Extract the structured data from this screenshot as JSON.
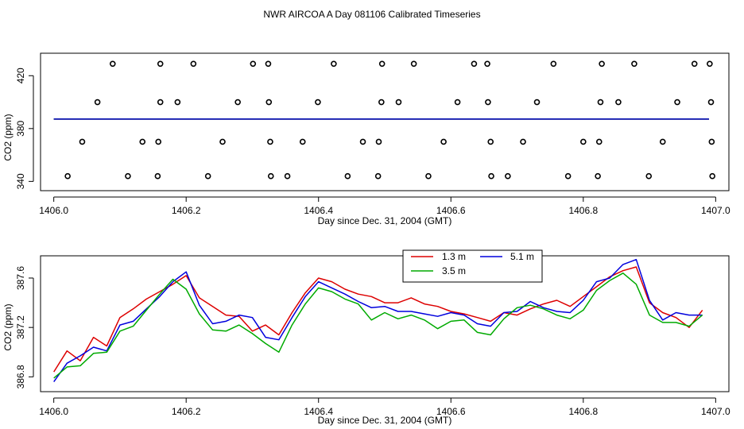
{
  "figure_title": "NWR AIRCOA A  Day 081106  Calibrated Timeseries",
  "chart_data": [
    {
      "type": "scatter",
      "xlabel": "Day since Dec. 31, 2004 (GMT)",
      "ylabel": "CO2 (ppm)",
      "xlim": [
        1405.98,
        1407.02
      ],
      "ylim": [
        333,
        437
      ],
      "x_ticks": [
        "1406.0",
        "1406.2",
        "1406.4",
        "1406.6",
        "1406.8",
        "1407.0"
      ],
      "x_tick_values": [
        1406.0,
        1406.2,
        1406.4,
        1406.6,
        1406.8,
        1407.0
      ],
      "y_ticks": [
        "340",
        "380",
        "420"
      ],
      "y_tick_values": [
        340,
        380,
        420
      ],
      "flat_line": {
        "y": 387.2,
        "colors": [
          "#cc0000",
          "#00aa00",
          "#0000cc"
        ]
      },
      "points": [
        {
          "x": 1406.089,
          "y": 429
        },
        {
          "x": 1406.161,
          "y": 429
        },
        {
          "x": 1406.211,
          "y": 429
        },
        {
          "x": 1406.301,
          "y": 429
        },
        {
          "x": 1406.324,
          "y": 429
        },
        {
          "x": 1406.423,
          "y": 429
        },
        {
          "x": 1406.496,
          "y": 429
        },
        {
          "x": 1406.544,
          "y": 429
        },
        {
          "x": 1406.635,
          "y": 429
        },
        {
          "x": 1406.655,
          "y": 429
        },
        {
          "x": 1406.755,
          "y": 429
        },
        {
          "x": 1406.828,
          "y": 429
        },
        {
          "x": 1406.877,
          "y": 429
        },
        {
          "x": 1406.968,
          "y": 429
        },
        {
          "x": 1406.991,
          "y": 429
        },
        {
          "x": 1406.066,
          "y": 400
        },
        {
          "x": 1406.161,
          "y": 400
        },
        {
          "x": 1406.187,
          "y": 400
        },
        {
          "x": 1406.278,
          "y": 400
        },
        {
          "x": 1406.325,
          "y": 400
        },
        {
          "x": 1406.399,
          "y": 400
        },
        {
          "x": 1406.495,
          "y": 400
        },
        {
          "x": 1406.521,
          "y": 400
        },
        {
          "x": 1406.61,
          "y": 400
        },
        {
          "x": 1406.656,
          "y": 400
        },
        {
          "x": 1406.73,
          "y": 400
        },
        {
          "x": 1406.826,
          "y": 400
        },
        {
          "x": 1406.853,
          "y": 400
        },
        {
          "x": 1406.942,
          "y": 400
        },
        {
          "x": 1406.993,
          "y": 400
        },
        {
          "x": 1406.043,
          "y": 370
        },
        {
          "x": 1406.134,
          "y": 370
        },
        {
          "x": 1406.158,
          "y": 370
        },
        {
          "x": 1406.255,
          "y": 370
        },
        {
          "x": 1406.327,
          "y": 370
        },
        {
          "x": 1406.376,
          "y": 370
        },
        {
          "x": 1406.467,
          "y": 370
        },
        {
          "x": 1406.491,
          "y": 370
        },
        {
          "x": 1406.589,
          "y": 370
        },
        {
          "x": 1406.66,
          "y": 370
        },
        {
          "x": 1406.709,
          "y": 370
        },
        {
          "x": 1406.8,
          "y": 370
        },
        {
          "x": 1406.824,
          "y": 370
        },
        {
          "x": 1406.92,
          "y": 370
        },
        {
          "x": 1406.994,
          "y": 370
        },
        {
          "x": 1406.021,
          "y": 344
        },
        {
          "x": 1406.112,
          "y": 344
        },
        {
          "x": 1406.157,
          "y": 344
        },
        {
          "x": 1406.233,
          "y": 344
        },
        {
          "x": 1406.328,
          "y": 344
        },
        {
          "x": 1406.353,
          "y": 344
        },
        {
          "x": 1406.444,
          "y": 344
        },
        {
          "x": 1406.49,
          "y": 344
        },
        {
          "x": 1406.566,
          "y": 344
        },
        {
          "x": 1406.661,
          "y": 344
        },
        {
          "x": 1406.686,
          "y": 344
        },
        {
          "x": 1406.777,
          "y": 344
        },
        {
          "x": 1406.822,
          "y": 344
        },
        {
          "x": 1406.899,
          "y": 344
        },
        {
          "x": 1406.995,
          "y": 344
        }
      ]
    },
    {
      "type": "line",
      "xlabel": "Day since Dec. 31, 2004 (GMT)",
      "ylabel": "CO2 (ppm)",
      "xlim": [
        1405.98,
        1407.02
      ],
      "ylim": [
        386.68,
        387.78
      ],
      "x_ticks": [
        "1406.0",
        "1406.2",
        "1406.4",
        "1406.6",
        "1406.8",
        "1407.0"
      ],
      "x_tick_values": [
        1406.0,
        1406.2,
        1406.4,
        1406.6,
        1406.8,
        1407.0
      ],
      "y_ticks": [
        "386.8",
        "387.2",
        "387.6"
      ],
      "y_tick_values": [
        386.8,
        387.2,
        387.6
      ],
      "legend": {
        "position": "top-center"
      },
      "x": [
        1406.0,
        1406.02,
        1406.04,
        1406.06,
        1406.08,
        1406.1,
        1406.12,
        1406.14,
        1406.16,
        1406.18,
        1406.2,
        1406.22,
        1406.24,
        1406.26,
        1406.28,
        1406.3,
        1406.32,
        1406.34,
        1406.36,
        1406.38,
        1406.4,
        1406.42,
        1406.44,
        1406.46,
        1406.48,
        1406.5,
        1406.52,
        1406.54,
        1406.56,
        1406.58,
        1406.6,
        1406.62,
        1406.64,
        1406.66,
        1406.68,
        1406.7,
        1406.72,
        1406.74,
        1406.76,
        1406.78,
        1406.8,
        1406.82,
        1406.84,
        1406.86,
        1406.88,
        1406.9,
        1406.92,
        1406.94,
        1406.96,
        1406.98
      ],
      "series": [
        {
          "name": "1.3 m",
          "color": "#dd0000",
          "values": [
            386.84,
            387.01,
            386.93,
            387.12,
            387.05,
            387.28,
            387.35,
            387.43,
            387.49,
            387.55,
            387.62,
            387.44,
            387.37,
            387.3,
            387.29,
            387.17,
            387.22,
            387.14,
            387.32,
            387.48,
            387.6,
            387.57,
            387.51,
            387.47,
            387.45,
            387.4,
            387.4,
            387.44,
            387.39,
            387.37,
            387.33,
            387.31,
            387.28,
            387.25,
            387.32,
            387.3,
            387.35,
            387.39,
            387.42,
            387.37,
            387.45,
            387.53,
            387.61,
            387.66,
            387.69,
            387.4,
            387.32,
            387.28,
            387.2,
            387.34
          ]
        },
        {
          "name": "5.1 m",
          "color": "#0000dd",
          "values": [
            386.76,
            386.91,
            386.97,
            387.04,
            387.01,
            387.22,
            387.25,
            387.35,
            387.45,
            387.57,
            387.65,
            387.38,
            387.23,
            387.25,
            387.3,
            387.28,
            387.12,
            387.1,
            387.28,
            387.45,
            387.57,
            387.52,
            387.47,
            387.41,
            387.36,
            387.37,
            387.33,
            387.33,
            387.31,
            387.29,
            387.32,
            387.3,
            387.23,
            387.21,
            387.32,
            387.33,
            387.41,
            387.36,
            387.33,
            387.32,
            387.42,
            387.57,
            387.6,
            387.71,
            387.75,
            387.42,
            387.26,
            387.32,
            387.3,
            387.3
          ]
        },
        {
          "name": "3.5 m",
          "color": "#00aa00",
          "values": [
            386.79,
            386.88,
            386.89,
            386.99,
            387.0,
            387.17,
            387.21,
            387.34,
            387.47,
            387.59,
            387.51,
            387.31,
            387.18,
            387.17,
            387.22,
            387.15,
            387.07,
            387.0,
            387.22,
            387.39,
            387.52,
            387.49,
            387.43,
            387.39,
            387.26,
            387.32,
            387.27,
            387.3,
            387.26,
            387.19,
            387.25,
            387.26,
            387.16,
            387.14,
            387.27,
            387.36,
            387.38,
            387.35,
            387.3,
            387.27,
            387.34,
            387.5,
            387.58,
            387.64,
            387.55,
            387.3,
            387.24,
            387.24,
            387.21,
            387.3
          ]
        }
      ]
    }
  ]
}
